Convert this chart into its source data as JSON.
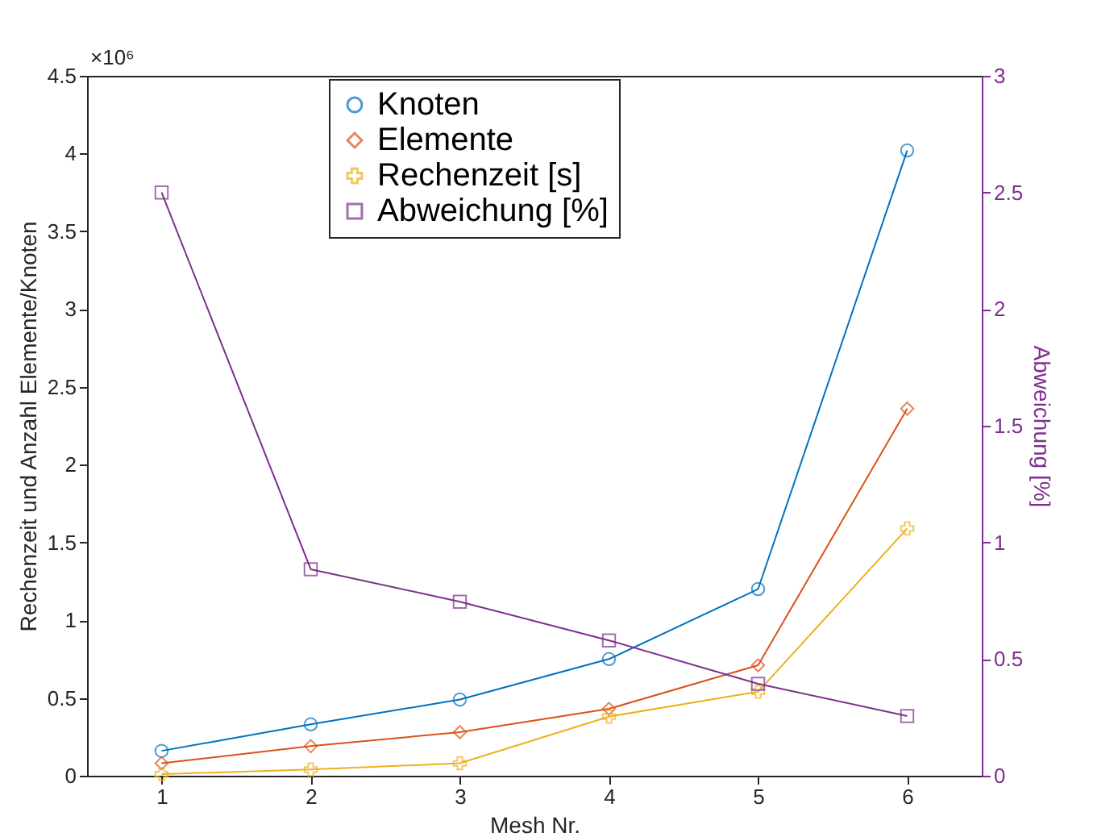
{
  "chart_data": {
    "type": "line",
    "xlabel": "Mesh Nr.",
    "ylabel": "Rechenzeit und Anzahl Elemente/Knoten",
    "y2label": "Abweichung [%]",
    "x": [
      1,
      2,
      3,
      4,
      5,
      6
    ],
    "xlim": [
      0.5,
      6.5
    ],
    "xticks": [
      1,
      2,
      3,
      4,
      5,
      6
    ],
    "ylim": [
      0,
      4.5
    ],
    "yticks": [
      0,
      0.5,
      1,
      1.5,
      2,
      2.5,
      3,
      3.5,
      4,
      4.5
    ],
    "y2lim": [
      0,
      3
    ],
    "y2ticks": [
      0,
      0.5,
      1,
      1.5,
      2,
      2.5,
      3
    ],
    "annotations": [
      "×10⁶"
    ],
    "legend": "top",
    "grid": false,
    "line_style": "solid",
    "series": [
      {
        "name": "Knoten",
        "color": "#0072bd",
        "marker": "circle",
        "values": [
          0.16,
          0.33,
          0.49,
          0.75,
          1.2,
          4.02
        ]
      },
      {
        "name": "Elemente",
        "color": "#d95319",
        "marker": "diamond",
        "values": [
          0.08,
          0.19,
          0.28,
          0.43,
          0.71,
          2.36
        ]
      },
      {
        "name": "Rechenzeit [s]",
        "color": "#edb120",
        "marker": "cross",
        "values": [
          0.01,
          0.04,
          0.08,
          0.38,
          0.54,
          1.59
        ]
      },
      {
        "name": "Abweichung [%]",
        "color": "#7e2f8e",
        "marker": "square",
        "axis": "y2",
        "values": [
          2.5,
          0.885,
          0.746,
          0.58,
          0.394,
          0.256
        ]
      }
    ]
  }
}
